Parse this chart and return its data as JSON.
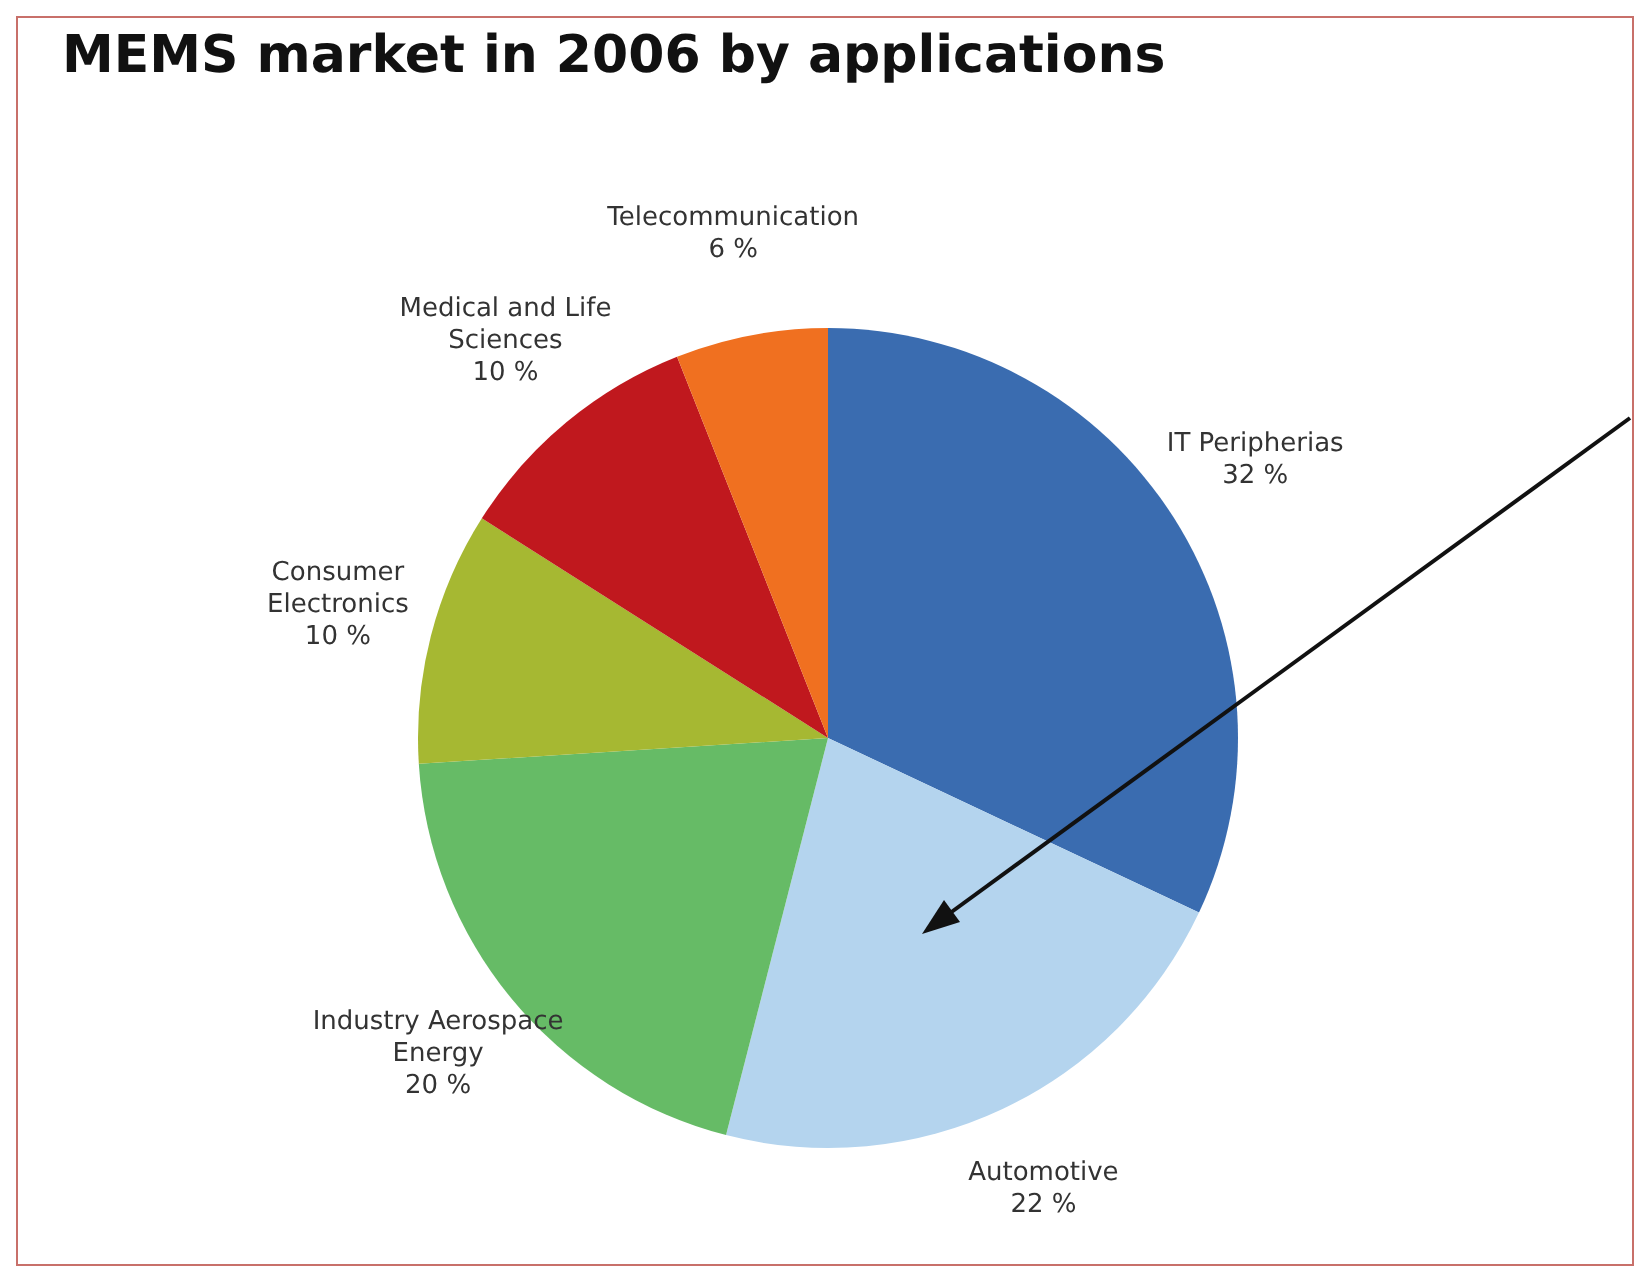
{
  "chart_data": {
    "type": "pie",
    "title": "MEMS market in 2006 by applications",
    "categories": [
      "IT Peripherias",
      "Automotive",
      "Industry Aerospace Energy",
      "Consumer Electronics",
      "Medical and Life Sciences",
      "Telecommunication"
    ],
    "values": [
      32,
      22,
      20,
      10,
      10,
      6
    ],
    "colors": [
      "#3a6cb0",
      "#b4d4ee",
      "#66bb66",
      "#a6b832",
      "#c0181e",
      "#f07020"
    ],
    "value_labels": [
      "32 %",
      "22 %",
      "20 %",
      "10 %",
      "10 %",
      "6 %"
    ]
  }
}
